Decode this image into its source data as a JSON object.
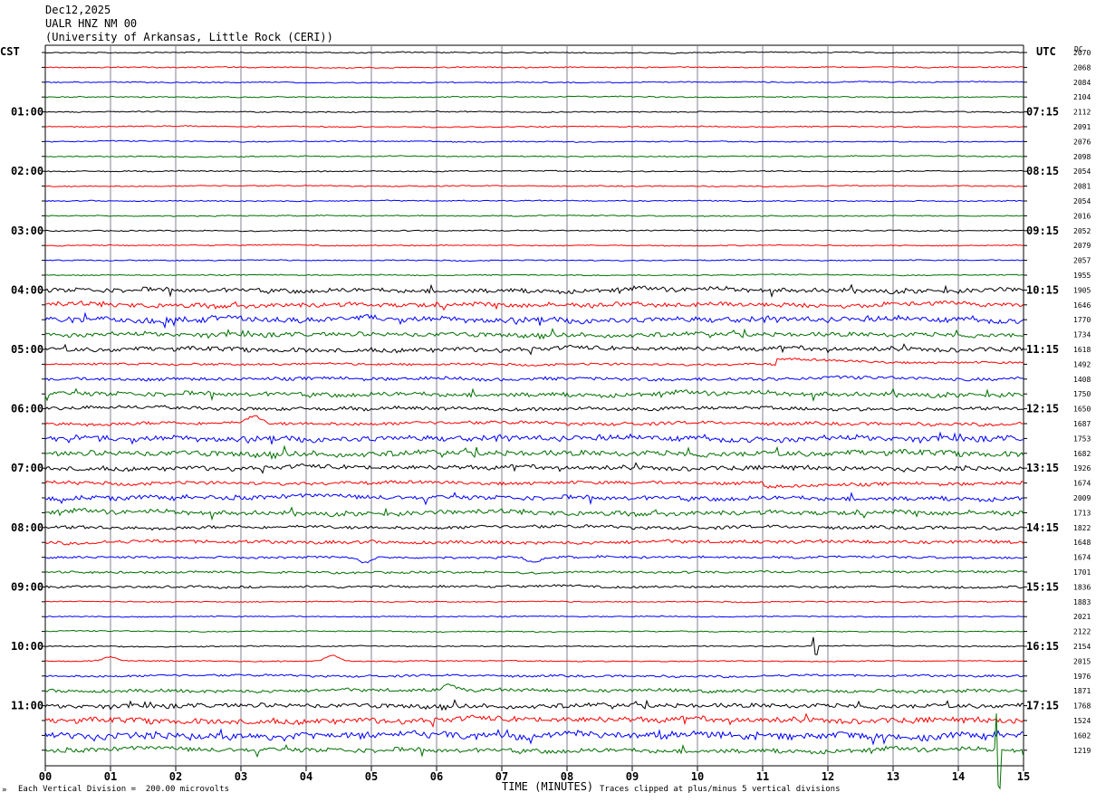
{
  "header": {
    "date": "Dec12,2025",
    "station": "UALR HNZ NM 00",
    "institution": "(University of Arkansas, Little Rock (CERI))"
  },
  "left_axis_label": "CST",
  "right_axis_label": "UTC",
  "dc_label": "DC",
  "footer": {
    "scale_note": "Each Vertical Division =  200.00 microvolts",
    "xlabel": "TIME (MINUTES)",
    "clip_note": "Traces clipped at plus/minus 5 vertical divisions"
  },
  "trace_colors": [
    "#000000",
    "#ff0000",
    "#0000ff",
    "#007000"
  ],
  "chart_data": {
    "type": "line",
    "description_type": "helicorder",
    "xlabel": "TIME (MINUTES)",
    "xlim": [
      0,
      15
    ],
    "x_ticks": [
      "00",
      "01",
      "02",
      "03",
      "04",
      "05",
      "06",
      "07",
      "08",
      "09",
      "10",
      "11",
      "12",
      "13",
      "14",
      "15"
    ],
    "row_minutes": 15,
    "rows": 48,
    "cst_labels": [
      {
        "row": 4,
        "text": "01:00"
      },
      {
        "row": 8,
        "text": "02:00"
      },
      {
        "row": 12,
        "text": "03:00"
      },
      {
        "row": 16,
        "text": "04:00"
      },
      {
        "row": 20,
        "text": "05:00"
      },
      {
        "row": 24,
        "text": "06:00"
      },
      {
        "row": 28,
        "text": "07:00"
      },
      {
        "row": 32,
        "text": "08:00"
      },
      {
        "row": 36,
        "text": "09:00"
      },
      {
        "row": 40,
        "text": "10:00"
      },
      {
        "row": 44,
        "text": "11:00"
      }
    ],
    "utc_labels": [
      {
        "row": 4,
        "text": "07:15"
      },
      {
        "row": 8,
        "text": "08:15"
      },
      {
        "row": 12,
        "text": "09:15"
      },
      {
        "row": 16,
        "text": "10:15"
      },
      {
        "row": 20,
        "text": "11:15"
      },
      {
        "row": 24,
        "text": "12:15"
      },
      {
        "row": 28,
        "text": "13:15"
      },
      {
        "row": 32,
        "text": "14:15"
      },
      {
        "row": 36,
        "text": "15:15"
      },
      {
        "row": 40,
        "text": "16:15"
      },
      {
        "row": 44,
        "text": "17:15"
      }
    ],
    "dc_offsets": [
      2070,
      2068,
      2084,
      2104,
      2112,
      2091,
      2076,
      2098,
      2054,
      2081,
      2054,
      2016,
      2052,
      2079,
      2057,
      1955,
      1905,
      1646,
      1770,
      1734,
      1618,
      1492,
      1408,
      1750,
      1650,
      1687,
      1753,
      1682,
      1926,
      1674,
      2009,
      1713,
      1822,
      1648,
      1674,
      1701,
      1836,
      1883,
      2021,
      2122,
      2154,
      2015,
      1976,
      1871,
      1768,
      1524,
      1602,
      1219
    ],
    "noise_level": [
      1,
      1,
      1,
      1,
      1,
      1,
      1,
      1,
      1,
      1,
      1,
      1,
      1,
      1,
      1,
      1,
      4,
      4,
      5,
      4,
      4,
      2,
      3,
      4,
      3,
      3,
      5,
      5,
      4,
      3,
      4,
      4,
      3,
      3,
      2,
      2,
      2,
      1,
      1,
      1,
      1,
      1,
      2,
      3,
      4,
      5,
      6,
      4
    ],
    "events": [
      {
        "row": 21,
        "minute": 11.2,
        "shape": "step",
        "amp": -8
      },
      {
        "row": 25,
        "minute": 3.2,
        "shape": "bump",
        "amp": -7
      },
      {
        "row": 29,
        "minute": 11.0,
        "shape": "step",
        "amp": 6
      },
      {
        "row": 34,
        "minute": 4.9,
        "shape": "bump",
        "amp": 6
      },
      {
        "row": 34,
        "minute": 7.5,
        "shape": "bump",
        "amp": 6
      },
      {
        "row": 40,
        "minute": 11.8,
        "shape": "spike",
        "amp": 10
      },
      {
        "row": 41,
        "minute": 4.4,
        "shape": "bump",
        "amp": -6
      },
      {
        "row": 41,
        "minute": 1.0,
        "shape": "bump",
        "amp": -5
      },
      {
        "row": 43,
        "minute": 6.2,
        "shape": "bump",
        "amp": -6
      },
      {
        "row": 47,
        "minute": 14.6,
        "shape": "spike",
        "amp": 40
      }
    ]
  }
}
